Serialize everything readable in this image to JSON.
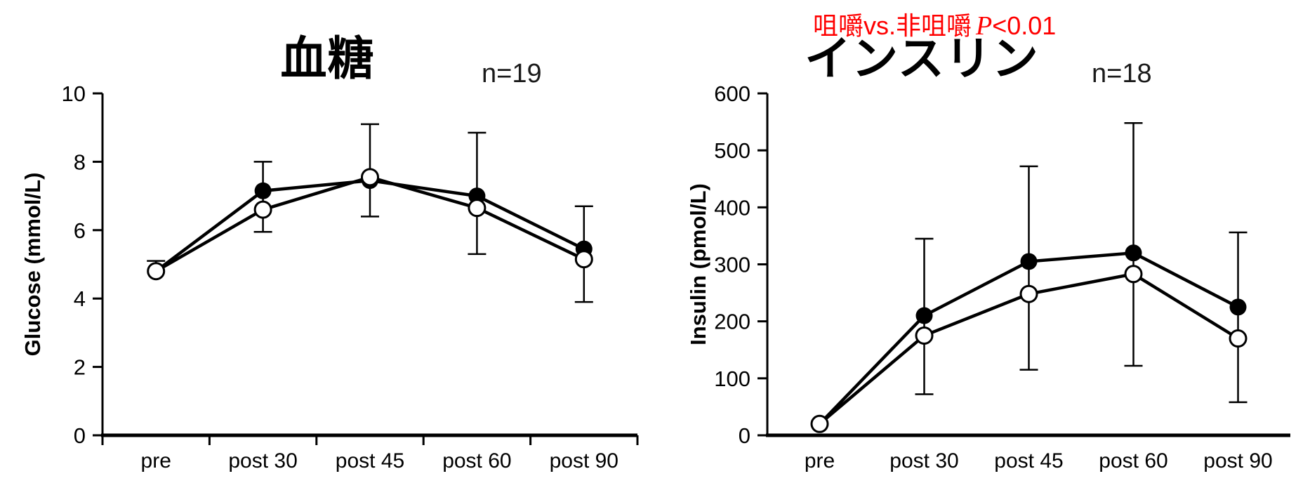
{
  "page": {
    "background": "#ffffff"
  },
  "annotation": {
    "compare_label": "咀嚼vs.非咀嚼",
    "p_symbol": "P",
    "p_comparison": "<0.01",
    "color": "#ff0000"
  },
  "chart_data": [
    {
      "type": "line",
      "title": "血糖",
      "n_label": "n=19",
      "ylabel": "Glucose (mmol/L)",
      "ylim": [
        0,
        10
      ],
      "yticks": [
        0,
        2,
        4,
        6,
        8,
        10
      ],
      "categories": [
        "pre",
        "post 30",
        "post 45",
        "post 60",
        "post 90"
      ],
      "x_axis_ticks": true,
      "grid": false,
      "legend_position": "none",
      "series": [
        {
          "name": "filled-circle-series",
          "marker": "filled-circle",
          "color": "#000000",
          "values": [
            4.8,
            7.15,
            7.45,
            7.0,
            5.45
          ]
        },
        {
          "name": "open-circle-series",
          "marker": "open-circle",
          "color": "#000000",
          "fill": "#ffffff",
          "values": [
            4.8,
            6.6,
            7.55,
            6.65,
            5.15
          ]
        }
      ],
      "error_bars": {
        "upper": [
          5.1,
          8.0,
          9.1,
          8.85,
          6.7
        ],
        "lower": [
          null,
          5.95,
          6.4,
          5.3,
          3.9
        ]
      }
    },
    {
      "type": "line",
      "title": "インスリン",
      "n_label": "n=18",
      "ylabel": "Insulin (pmol/L)",
      "ylim": [
        0,
        600
      ],
      "yticks": [
        0,
        100,
        200,
        300,
        400,
        500,
        600
      ],
      "categories": [
        "pre",
        "post 30",
        "post 45",
        "post 60",
        "post 90"
      ],
      "x_axis_ticks": false,
      "grid": false,
      "legend_position": "none",
      "series": [
        {
          "name": "filled-circle-series",
          "marker": "filled-circle",
          "color": "#000000",
          "values": [
            20,
            210,
            305,
            320,
            225
          ]
        },
        {
          "name": "open-circle-series",
          "marker": "open-circle",
          "color": "#000000",
          "fill": "#ffffff",
          "values": [
            20,
            175,
            248,
            283,
            170
          ]
        }
      ],
      "error_bars": {
        "upper": [
          null,
          345,
          472,
          548,
          356
        ],
        "lower": [
          null,
          72,
          115,
          122,
          58
        ]
      }
    }
  ]
}
